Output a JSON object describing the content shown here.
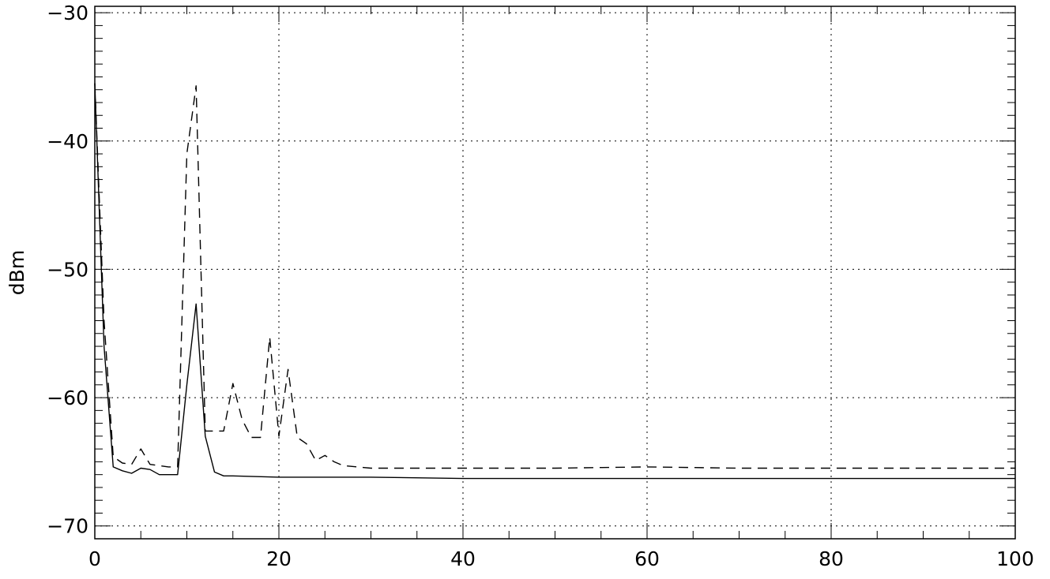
{
  "chart_data": {
    "type": "line",
    "title": "",
    "xlabel": "",
    "ylabel": "dBm",
    "xlim": [
      0,
      100
    ],
    "ylim": [
      -71,
      -29.5
    ],
    "grid": true,
    "x_ticks": [
      "0",
      "20",
      "40",
      "60",
      "80",
      "100"
    ],
    "y_ticks": [
      "-30",
      "-40",
      "-50",
      "-60",
      "-70"
    ],
    "series": [
      {
        "style": "solid",
        "color": "#000000",
        "x": [
          0,
          1,
          2,
          3,
          4,
          5,
          6,
          7,
          8,
          9,
          10,
          11,
          12,
          13,
          14,
          15,
          20,
          30,
          40,
          50,
          60,
          70,
          80,
          90,
          100
        ],
        "y": [
          -35.5,
          -56,
          -65.4,
          -65.7,
          -65.9,
          -65.5,
          -65.6,
          -66,
          -66,
          -66,
          -59,
          -52.7,
          -63,
          -65.8,
          -66.1,
          -66.1,
          -66.2,
          -66.2,
          -66.3,
          -66.3,
          -66.3,
          -66.3,
          -66.3,
          -66.3,
          -66.3
        ]
      },
      {
        "style": "dashed",
        "color": "#000000",
        "x": [
          0,
          1,
          2,
          3,
          4,
          5,
          6,
          7,
          8,
          9,
          10,
          11,
          12,
          13,
          14,
          15,
          16,
          17,
          18,
          19,
          20,
          21,
          22,
          23,
          24,
          25,
          26,
          27,
          30,
          40,
          50,
          60,
          70,
          80,
          90,
          100
        ],
        "y": [
          -35.5,
          -54,
          -64.6,
          -65.1,
          -65.2,
          -64,
          -65.2,
          -65.3,
          -65.4,
          -65.4,
          -41,
          -35.7,
          -62.6,
          -62.6,
          -62.6,
          -58.9,
          -61.7,
          -63.1,
          -63.1,
          -55.3,
          -63,
          -57.8,
          -63.1,
          -63.6,
          -64.9,
          -64.5,
          -65,
          -65.3,
          -65.5,
          -65.5,
          -65.5,
          -65.4,
          -65.5,
          -65.5,
          -65.5,
          -65.5
        ]
      }
    ]
  }
}
